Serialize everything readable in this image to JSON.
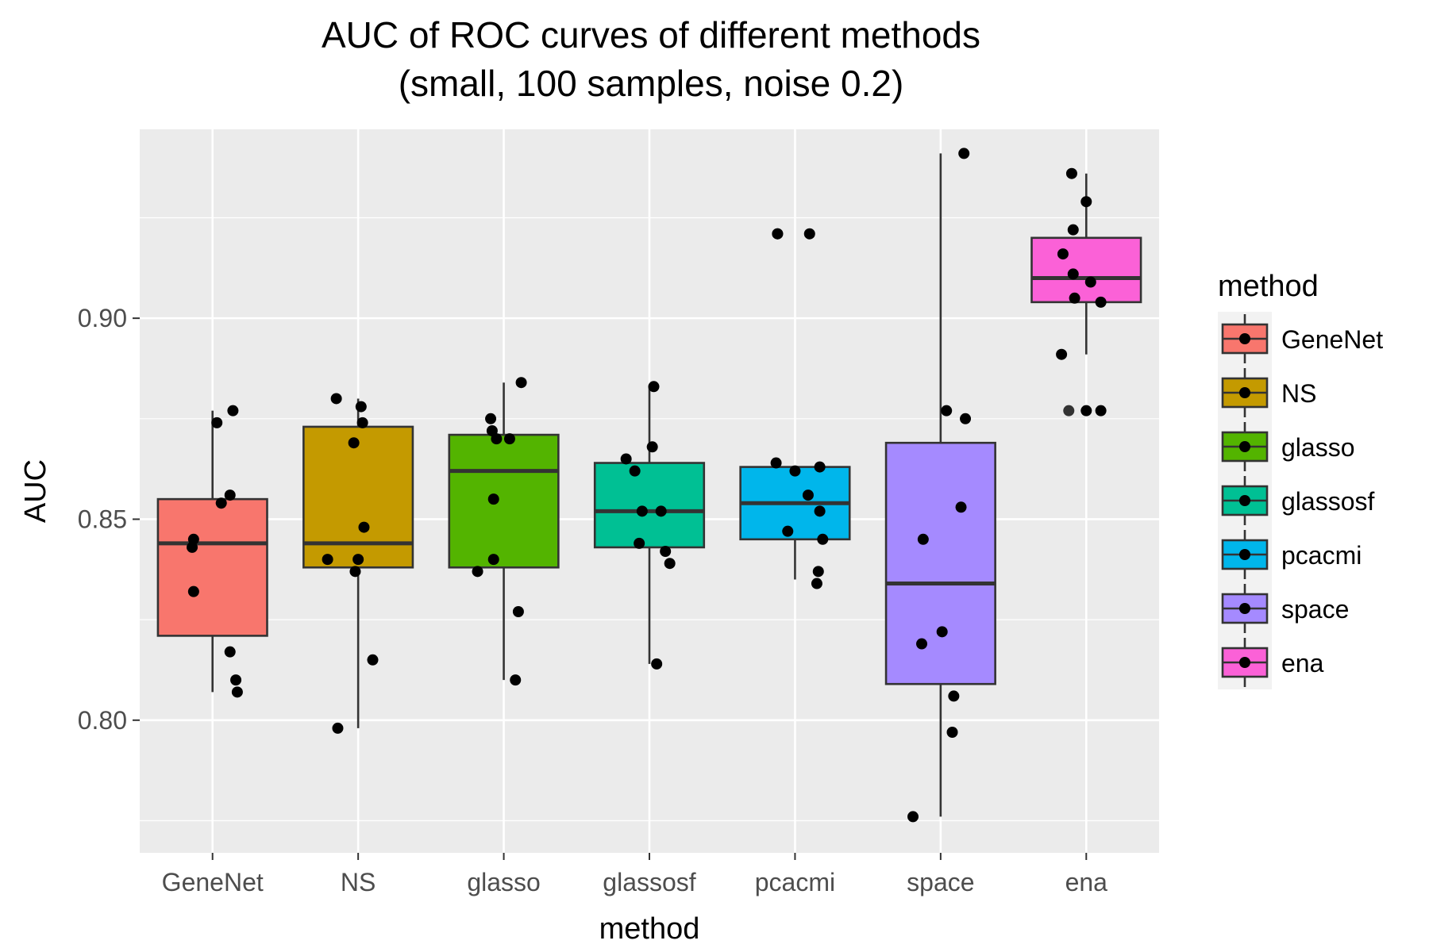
{
  "chart_data": {
    "type": "boxplot",
    "title": [
      "AUC of ROC curves of different methods",
      "(small, 100 samples, noise 0.2)"
    ],
    "xlabel": "method",
    "ylabel": "AUC",
    "ylim": [
      0.767,
      0.947
    ],
    "yticks": [
      0.8,
      0.85,
      0.9
    ],
    "ytick_labels": [
      "0.80",
      "0.85",
      "0.90"
    ],
    "grid": true,
    "legend": {
      "title": "method",
      "position": "right"
    },
    "categories": [
      "GeneNet",
      "NS",
      "glasso",
      "glassosf",
      "pcacmi",
      "space",
      "ena"
    ],
    "colors": [
      "#F8766D",
      "#C49A00",
      "#53B400",
      "#00C094",
      "#00B6EB",
      "#A58AFF",
      "#FB61D7"
    ],
    "boxes": [
      {
        "min": 0.807,
        "q1": 0.821,
        "median": 0.844,
        "q3": 0.855,
        "max": 0.877,
        "outliers": []
      },
      {
        "min": 0.798,
        "q1": 0.838,
        "median": 0.844,
        "q3": 0.873,
        "max": 0.88,
        "outliers": []
      },
      {
        "min": 0.81,
        "q1": 0.838,
        "median": 0.862,
        "q3": 0.871,
        "max": 0.884,
        "outliers": []
      },
      {
        "min": 0.814,
        "q1": 0.843,
        "median": 0.852,
        "q3": 0.864,
        "max": 0.883,
        "outliers": []
      },
      {
        "min": 0.835,
        "q1": 0.845,
        "median": 0.854,
        "q3": 0.863,
        "max": 0.863,
        "outliers": [
          0.921
        ]
      },
      {
        "min": 0.776,
        "q1": 0.809,
        "median": 0.834,
        "q3": 0.869,
        "max": 0.941,
        "outliers": []
      },
      {
        "min": 0.891,
        "q1": 0.904,
        "median": 0.91,
        "q3": 0.92,
        "max": 0.936,
        "outliers": [
          0.877
        ]
      }
    ],
    "points": [
      [
        {
          "dx": 0.03,
          "y": 0.874
        },
        {
          "dx": 0.14,
          "y": 0.877
        },
        {
          "dx": 0.06,
          "y": 0.854
        },
        {
          "dx": 0.12,
          "y": 0.856
        },
        {
          "dx": -0.13,
          "y": 0.845
        },
        {
          "dx": -0.14,
          "y": 0.843
        },
        {
          "dx": -0.13,
          "y": 0.832
        },
        {
          "dx": 0.12,
          "y": 0.817
        },
        {
          "dx": 0.16,
          "y": 0.81
        },
        {
          "dx": 0.17,
          "y": 0.807
        }
      ],
      [
        {
          "dx": -0.15,
          "y": 0.88
        },
        {
          "dx": 0.02,
          "y": 0.878
        },
        {
          "dx": 0.03,
          "y": 0.874
        },
        {
          "dx": -0.03,
          "y": 0.869
        },
        {
          "dx": 0.04,
          "y": 0.848
        },
        {
          "dx": -0.21,
          "y": 0.84
        },
        {
          "dx": 0.0,
          "y": 0.84
        },
        {
          "dx": -0.02,
          "y": 0.837
        },
        {
          "dx": 0.1,
          "y": 0.815
        },
        {
          "dx": -0.14,
          "y": 0.798
        }
      ],
      [
        {
          "dx": 0.12,
          "y": 0.884
        },
        {
          "dx": -0.09,
          "y": 0.875
        },
        {
          "dx": -0.08,
          "y": 0.872
        },
        {
          "dx": -0.05,
          "y": 0.87
        },
        {
          "dx": 0.04,
          "y": 0.87
        },
        {
          "dx": -0.07,
          "y": 0.855
        },
        {
          "dx": -0.07,
          "y": 0.84
        },
        {
          "dx": -0.18,
          "y": 0.837
        },
        {
          "dx": 0.1,
          "y": 0.827
        },
        {
          "dx": 0.08,
          "y": 0.81
        }
      ],
      [
        {
          "dx": 0.03,
          "y": 0.883
        },
        {
          "dx": 0.02,
          "y": 0.868
        },
        {
          "dx": -0.16,
          "y": 0.865
        },
        {
          "dx": -0.1,
          "y": 0.862
        },
        {
          "dx": -0.05,
          "y": 0.852
        },
        {
          "dx": 0.08,
          "y": 0.852
        },
        {
          "dx": -0.07,
          "y": 0.844
        },
        {
          "dx": 0.11,
          "y": 0.842
        },
        {
          "dx": 0.14,
          "y": 0.839
        },
        {
          "dx": 0.05,
          "y": 0.814
        }
      ],
      [
        {
          "dx": -0.12,
          "y": 0.921
        },
        {
          "dx": 0.1,
          "y": 0.921
        },
        {
          "dx": -0.13,
          "y": 0.864
        },
        {
          "dx": 0.0,
          "y": 0.862
        },
        {
          "dx": 0.17,
          "y": 0.863
        },
        {
          "dx": 0.09,
          "y": 0.856
        },
        {
          "dx": 0.17,
          "y": 0.852
        },
        {
          "dx": -0.05,
          "y": 0.847
        },
        {
          "dx": 0.19,
          "y": 0.845
        },
        {
          "dx": 0.16,
          "y": 0.837
        },
        {
          "dx": 0.15,
          "y": 0.834
        }
      ],
      [
        {
          "dx": 0.16,
          "y": 0.941
        },
        {
          "dx": 0.04,
          "y": 0.877
        },
        {
          "dx": 0.17,
          "y": 0.875
        },
        {
          "dx": 0.14,
          "y": 0.853
        },
        {
          "dx": -0.12,
          "y": 0.845
        },
        {
          "dx": 0.01,
          "y": 0.822
        },
        {
          "dx": -0.13,
          "y": 0.819
        },
        {
          "dx": 0.09,
          "y": 0.806
        },
        {
          "dx": 0.08,
          "y": 0.797
        },
        {
          "dx": -0.19,
          "y": 0.776
        }
      ],
      [
        {
          "dx": -0.1,
          "y": 0.936
        },
        {
          "dx": 0.0,
          "y": 0.929
        },
        {
          "dx": -0.09,
          "y": 0.922
        },
        {
          "dx": -0.16,
          "y": 0.916
        },
        {
          "dx": -0.09,
          "y": 0.911
        },
        {
          "dx": 0.03,
          "y": 0.909
        },
        {
          "dx": -0.08,
          "y": 0.905
        },
        {
          "dx": 0.1,
          "y": 0.904
        },
        {
          "dx": -0.17,
          "y": 0.891
        },
        {
          "dx": 0.0,
          "y": 0.877
        },
        {
          "dx": 0.1,
          "y": 0.877
        }
      ]
    ]
  }
}
